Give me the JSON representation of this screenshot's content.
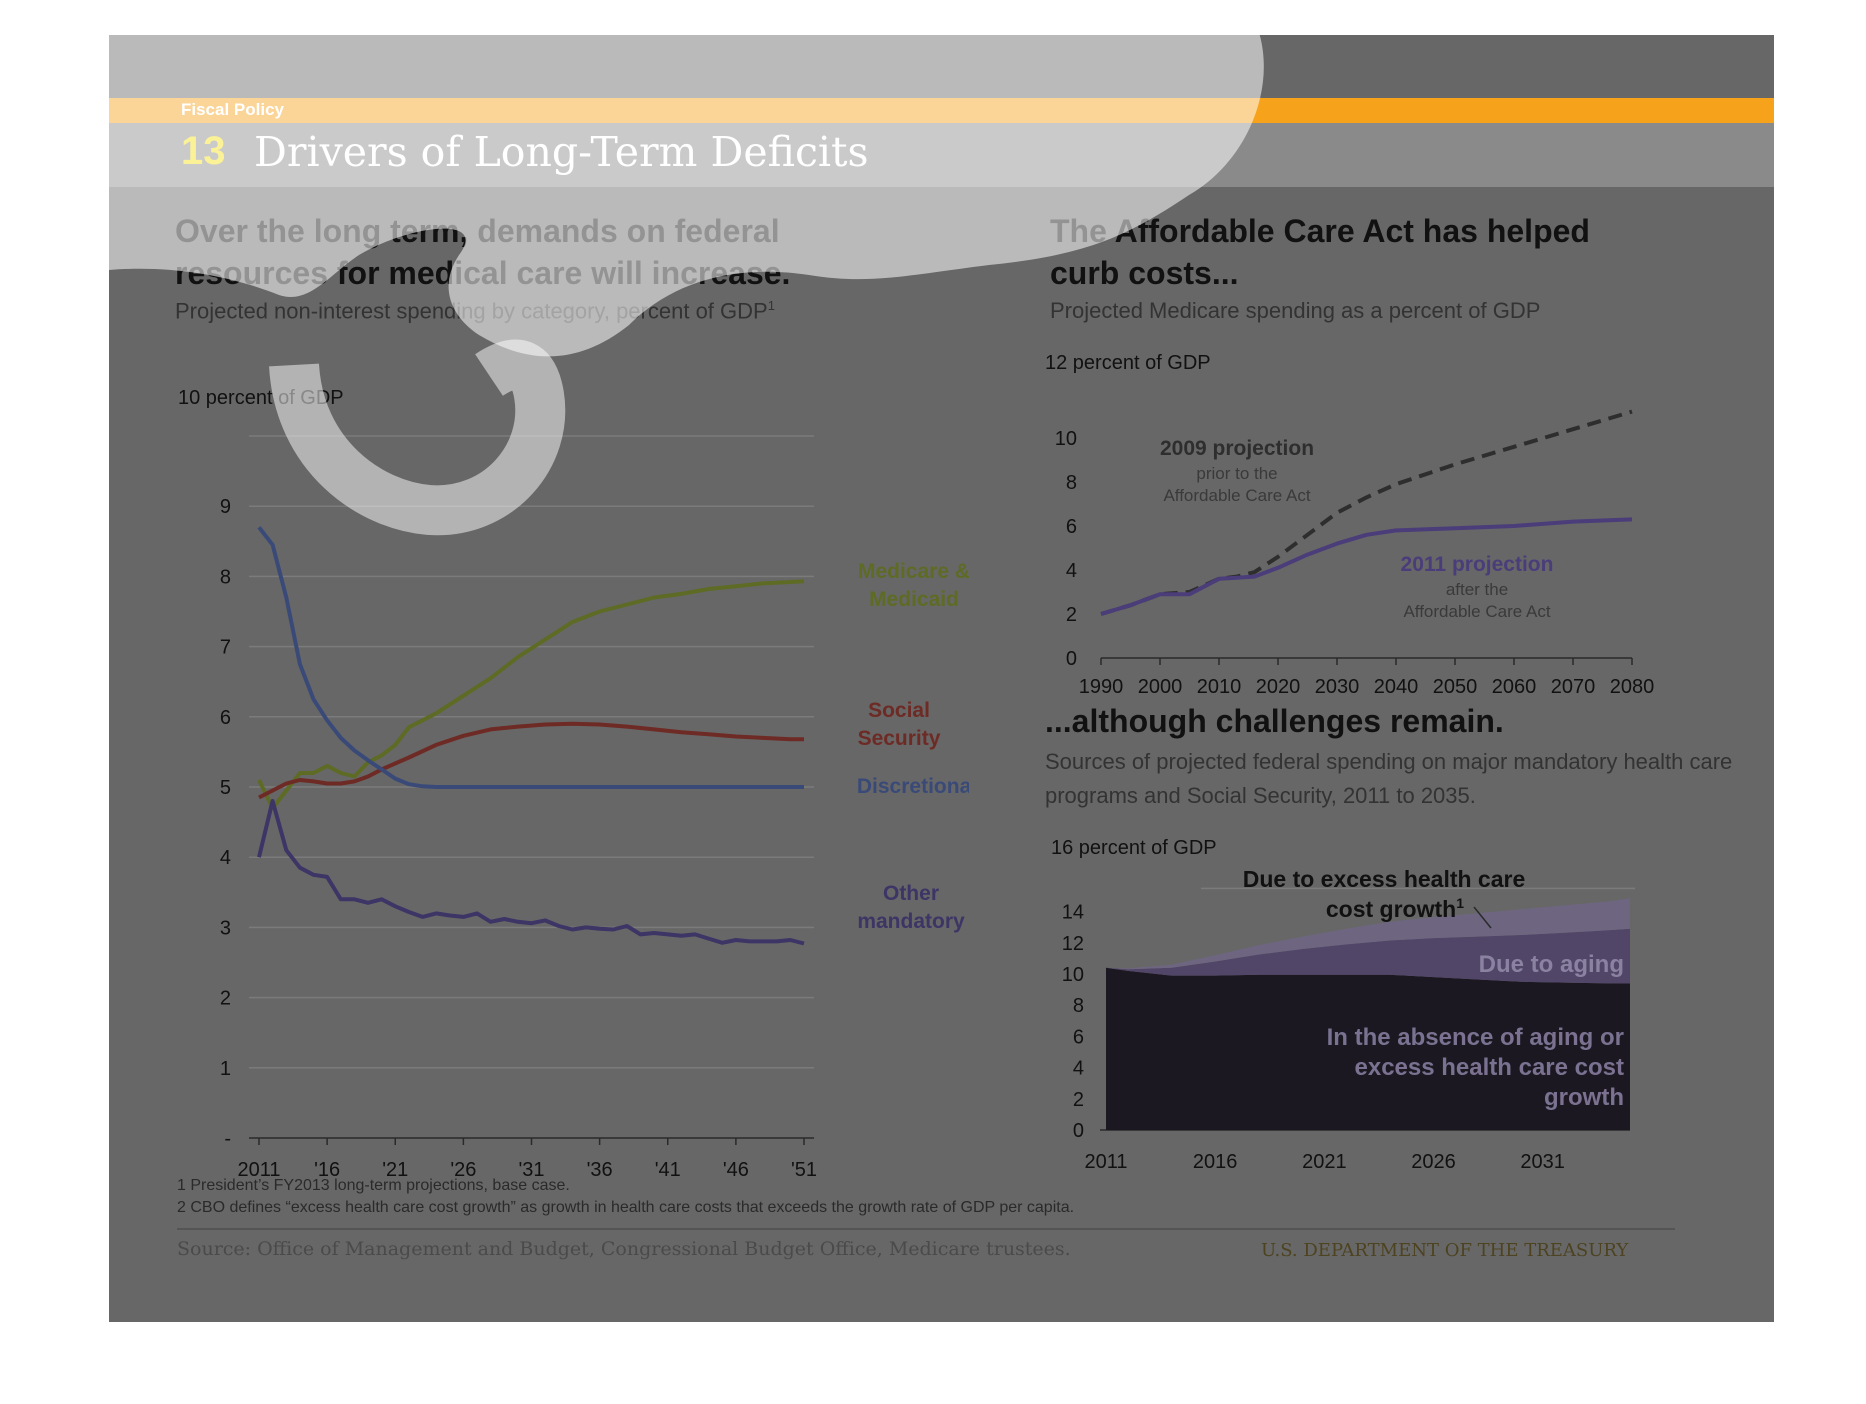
{
  "header": {
    "section": "Fiscal Policy",
    "number": "13",
    "title": "Drivers of Long-Term Deficits"
  },
  "colors": {
    "slide_bg": "#676767",
    "orange": "#f7a21b",
    "medicare": "#5d6b25",
    "social_security": "#6e2a24",
    "discretionary": "#3a4a78",
    "other_mandatory": "#3c3565",
    "projection_2011": "#4a3d7a",
    "dashed_2009": "#2e2e2e"
  },
  "left": {
    "headline_1": "Over the long term, demands on federal",
    "headline_2": "resources for medical care will increase.",
    "subhead": "Projected non-interest spending by category, percent of GDP",
    "subhead_sup": "1",
    "unit": "10 percent of GDP"
  },
  "right_top": {
    "headline_1": "The Affordable Care Act has helped",
    "headline_2": "curb costs...",
    "subhead": "Projected Medicare spending as a percent of GDP",
    "unit": "12 percent of GDP"
  },
  "right_bottom": {
    "headline": "...although challenges remain.",
    "subhead_1": "Sources of projected federal spending on major mandatory health care",
    "subhead_2": "programs and Social Security, 2011 to 2035.",
    "unit": "16 percent of GDP"
  },
  "footnotes": [
    "1 President’s FY2013 long-term projections, base case.",
    "2 CBO defines “excess health care cost growth” as growth in health care costs that exceeds the growth rate of GDP per capita."
  ],
  "source": "Source: Office of Management and Budget, Congressional Budget Office, Medicare trustees.",
  "department": "U.S. DEPARTMENT OF THE TREASURY",
  "chart_data": [
    {
      "type": "line",
      "x_labels": [
        "2011",
        "'16",
        "'21",
        "'26",
        "'31",
        "'36",
        "'41",
        "'46",
        "'51"
      ],
      "x_range": [
        2011,
        2051
      ],
      "ylim": [
        0,
        10
      ],
      "y_ticks": [
        "-",
        "1",
        "2",
        "3",
        "4",
        "5",
        "6",
        "7",
        "8",
        "9"
      ],
      "grid": true,
      "series": [
        {
          "name": "Medicare & Medicaid",
          "label_lines": [
            "Medicare &",
            "Medicaid"
          ],
          "color": "#5d6b25",
          "x": [
            2011,
            2012,
            2013,
            2014,
            2015,
            2016,
            2017,
            2018,
            2019,
            2020,
            2021,
            2022,
            2024,
            2026,
            2028,
            2030,
            2032,
            2034,
            2036,
            2038,
            2040,
            2042,
            2044,
            2046,
            2048,
            2050,
            2051
          ],
          "y": [
            5.1,
            4.7,
            4.95,
            5.2,
            5.2,
            5.3,
            5.2,
            5.15,
            5.35,
            5.45,
            5.6,
            5.85,
            6.05,
            6.3,
            6.55,
            6.85,
            7.1,
            7.35,
            7.5,
            7.6,
            7.7,
            7.75,
            7.82,
            7.86,
            7.9,
            7.92,
            7.93
          ]
        },
        {
          "name": "Social Security",
          "label_lines": [
            "Social",
            "Security"
          ],
          "color": "#6e2a24",
          "x": [
            2011,
            2012,
            2013,
            2014,
            2015,
            2016,
            2017,
            2018,
            2019,
            2020,
            2022,
            2024,
            2026,
            2028,
            2030,
            2032,
            2034,
            2036,
            2038,
            2040,
            2042,
            2044,
            2046,
            2048,
            2050,
            2051
          ],
          "y": [
            4.85,
            4.95,
            5.05,
            5.1,
            5.08,
            5.05,
            5.05,
            5.08,
            5.15,
            5.25,
            5.42,
            5.6,
            5.73,
            5.82,
            5.86,
            5.89,
            5.9,
            5.89,
            5.86,
            5.82,
            5.78,
            5.75,
            5.72,
            5.7,
            5.68,
            5.68
          ]
        },
        {
          "name": "Discretionary",
          "label_lines": [
            "Discretionary"
          ],
          "color": "#3a4a78",
          "x": [
            2011,
            2012,
            2013,
            2014,
            2015,
            2016,
            2017,
            2018,
            2019,
            2020,
            2021,
            2022,
            2023,
            2024,
            2026,
            2030,
            2040,
            2051
          ],
          "y": [
            8.7,
            8.45,
            7.7,
            6.75,
            6.25,
            5.95,
            5.7,
            5.52,
            5.38,
            5.25,
            5.12,
            5.04,
            5.01,
            5.0,
            5.0,
            5.0,
            5.0,
            5.0
          ]
        },
        {
          "name": "Other mandatory",
          "label_lines": [
            "Other",
            "mandatory"
          ],
          "color": "#3c3565",
          "x": [
            2011,
            2012,
            2013,
            2014,
            2015,
            2016,
            2017,
            2018,
            2019,
            2020,
            2021,
            2022,
            2023,
            2024,
            2025,
            2026,
            2027,
            2028,
            2029,
            2030,
            2031,
            2032,
            2033,
            2034,
            2035,
            2036,
            2037,
            2038,
            2039,
            2040,
            2041,
            2042,
            2043,
            2044,
            2045,
            2046,
            2047,
            2048,
            2049,
            2050,
            2051
          ],
          "y": [
            4.0,
            4.8,
            4.1,
            3.85,
            3.75,
            3.72,
            3.4,
            3.4,
            3.35,
            3.4,
            3.3,
            3.22,
            3.15,
            3.2,
            3.17,
            3.15,
            3.2,
            3.08,
            3.12,
            3.08,
            3.06,
            3.1,
            3.02,
            2.97,
            3.0,
            2.98,
            2.97,
            3.02,
            2.9,
            2.92,
            2.9,
            2.88,
            2.9,
            2.84,
            2.78,
            2.82,
            2.8,
            2.8,
            2.8,
            2.82,
            2.77
          ]
        }
      ]
    },
    {
      "type": "line",
      "x_labels": [
        "1990",
        "2000",
        "2010",
        "2020",
        "2030",
        "2040",
        "2050",
        "2060",
        "2070",
        "2080"
      ],
      "x_range": [
        1990,
        2080
      ],
      "ylim": [
        0,
        12
      ],
      "y_ticks": [
        "0",
        "2",
        "4",
        "6",
        "8",
        "10"
      ],
      "series": [
        {
          "name": "2009 projection",
          "note": [
            "prior to the",
            "Affordable Care Act"
          ],
          "style": "dashed",
          "color": "#2e2e2e",
          "x": [
            1990,
            1995,
            2000,
            2005,
            2010,
            2013,
            2016,
            2020,
            2025,
            2030,
            2035,
            2040,
            2050,
            2060,
            2070,
            2080
          ],
          "y": [
            2.0,
            2.4,
            2.9,
            3.0,
            3.6,
            3.7,
            3.9,
            4.6,
            5.6,
            6.6,
            7.3,
            7.9,
            8.8,
            9.6,
            10.4,
            11.2
          ]
        },
        {
          "name": "2011 projection",
          "note": [
            "after the",
            "Affordable Care Act"
          ],
          "style": "solid",
          "color": "#4a3d7a",
          "x": [
            1990,
            1995,
            2000,
            2005,
            2010,
            2013,
            2016,
            2020,
            2025,
            2030,
            2035,
            2040,
            2050,
            2060,
            2070,
            2080
          ],
          "y": [
            2.0,
            2.4,
            2.9,
            2.9,
            3.6,
            3.65,
            3.7,
            4.1,
            4.7,
            5.2,
            5.6,
            5.8,
            5.9,
            6.0,
            6.2,
            6.3
          ]
        }
      ]
    },
    {
      "type": "area",
      "x_labels": [
        "2011",
        "2016",
        "2021",
        "2026",
        "2031"
      ],
      "x_range": [
        2011,
        2035
      ],
      "ylim": [
        0,
        16
      ],
      "y_ticks": [
        "0",
        "2",
        "4",
        "6",
        "8",
        "10",
        "12",
        "14"
      ],
      "x": [
        2011,
        2012,
        2014,
        2016,
        2018,
        2020,
        2022,
        2024,
        2026,
        2028,
        2030,
        2032,
        2034,
        2035
      ],
      "stacked": true,
      "series": [
        {
          "name": "In the absence of aging or excess health care cost growth",
          "label_lines": [
            "In the absence of aging or",
            "excess health care cost",
            "growth"
          ],
          "color": "#1b1822",
          "values": [
            10.4,
            10.2,
            9.9,
            9.9,
            9.95,
            9.95,
            9.95,
            9.95,
            9.8,
            9.65,
            9.5,
            9.45,
            9.4,
            9.4
          ]
        },
        {
          "name": "Due to aging",
          "label_lines": [
            "Due to aging"
          ],
          "color": "#514668",
          "values": [
            0.0,
            0.1,
            0.5,
            0.9,
            1.3,
            1.65,
            1.95,
            2.2,
            2.5,
            2.75,
            3.0,
            3.2,
            3.4,
            3.5
          ]
        },
        {
          "name": "Due to excess health care cost growth",
          "label_lines": [
            "Due to excess  health care",
            "cost growth"
          ],
          "label_sup": "1",
          "color": "#6e6680",
          "values": [
            0.0,
            0.05,
            0.2,
            0.4,
            0.6,
            0.8,
            1.0,
            1.2,
            1.35,
            1.5,
            1.65,
            1.75,
            1.85,
            1.95
          ]
        }
      ]
    }
  ]
}
